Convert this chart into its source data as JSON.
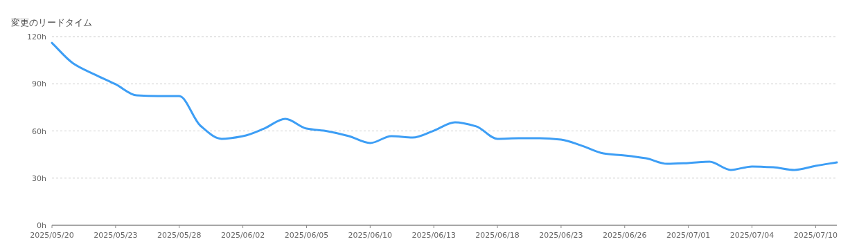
{
  "chart_data": {
    "type": "line",
    "ylabel": "変更のリードタイム",
    "categories": [
      "2025/05/20",
      null,
      null,
      "2025/05/23",
      null,
      null,
      "2025/05/28",
      null,
      null,
      "2025/06/02",
      null,
      null,
      "2025/06/05",
      null,
      null,
      "2025/06/10",
      null,
      null,
      "2025/06/13",
      null,
      null,
      "2025/06/18",
      null,
      null,
      "2025/06/23",
      null,
      null,
      "2025/06/26",
      null,
      null,
      "2025/07/01",
      null,
      null,
      "2025/07/04",
      null,
      null,
      "2025/07/10",
      null
    ],
    "series": [
      {
        "color": "#3d9ef5",
        "values": [
          116,
          103,
          96,
          89.7,
          82.6,
          82.2,
          82.2,
          63.3,
          55,
          56.7,
          61.5,
          67.7,
          61.5,
          59.8,
          56.7,
          52.3,
          56.7,
          55.8,
          60.2,
          65.5,
          62.9,
          55,
          55.4,
          55.4,
          54.5,
          50.5,
          45.7,
          44.4,
          42.6,
          39.1,
          39.6,
          40.4,
          35.2,
          37.4,
          36.9,
          35.2,
          37.8,
          40
        ]
      }
    ],
    "ylim": [
      0,
      120
    ],
    "yticks": [
      {
        "value": 0,
        "label": "0h"
      },
      {
        "value": 30,
        "label": "30h"
      },
      {
        "value": 60,
        "label": "60h"
      },
      {
        "value": 90,
        "label": "90h"
      },
      {
        "value": 120,
        "label": "120h"
      }
    ],
    "grid": "y"
  }
}
